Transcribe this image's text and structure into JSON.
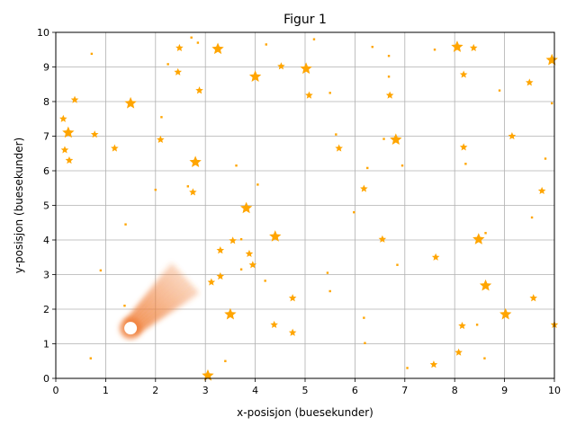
{
  "chart_data": {
    "type": "scatter",
    "title": "Figur 1",
    "xlabel": "x-posisjon (buesekunder)",
    "ylabel": "y-posisjon (buesekunder)",
    "xlim": [
      0,
      10
    ],
    "ylim": [
      0,
      10
    ],
    "grid": true,
    "x_ticks": [
      "0",
      "1",
      "2",
      "3",
      "4",
      "5",
      "6",
      "7",
      "8",
      "9",
      "10"
    ],
    "y_ticks": [
      "0",
      "1",
      "2",
      "3",
      "4",
      "5",
      "6",
      "7",
      "8",
      "9",
      "10"
    ],
    "star_color": "#ffa500",
    "comet_color": "#f0803c",
    "comet": {
      "x": 1.5,
      "y": 1.45,
      "tail_to": [
        2.6,
        2.9
      ]
    },
    "stars": [
      {
        "x": 0.15,
        "y": 7.5,
        "m": "s"
      },
      {
        "x": 0.25,
        "y": 7.1,
        "m": "m"
      },
      {
        "x": 0.18,
        "y": 6.6,
        "m": "s"
      },
      {
        "x": 0.27,
        "y": 6.3,
        "m": "s"
      },
      {
        "x": 0.38,
        "y": 8.05,
        "m": "s"
      },
      {
        "x": 0.72,
        "y": 9.38,
        "m": "t"
      },
      {
        "x": 0.78,
        "y": 7.05,
        "m": "s"
      },
      {
        "x": 1.18,
        "y": 6.65,
        "m": "s"
      },
      {
        "x": 1.5,
        "y": 7.95,
        "m": "m"
      },
      {
        "x": 0.9,
        "y": 3.12,
        "m": "t"
      },
      {
        "x": 1.4,
        "y": 4.45,
        "m": "t"
      },
      {
        "x": 1.38,
        "y": 2.1,
        "m": "t"
      },
      {
        "x": 0.7,
        "y": 0.58,
        "m": "t"
      },
      {
        "x": 2.0,
        "y": 5.45,
        "m": "t"
      },
      {
        "x": 2.1,
        "y": 6.9,
        "m": "s"
      },
      {
        "x": 2.12,
        "y": 7.55,
        "m": "t"
      },
      {
        "x": 2.25,
        "y": 9.08,
        "m": "t"
      },
      {
        "x": 2.45,
        "y": 8.85,
        "m": "s"
      },
      {
        "x": 2.48,
        "y": 9.55,
        "m": "s"
      },
      {
        "x": 2.72,
        "y": 9.85,
        "m": "t"
      },
      {
        "x": 2.85,
        "y": 9.7,
        "m": "t"
      },
      {
        "x": 2.88,
        "y": 8.32,
        "m": "s"
      },
      {
        "x": 3.25,
        "y": 9.52,
        "m": "m"
      },
      {
        "x": 2.8,
        "y": 6.25,
        "m": "m"
      },
      {
        "x": 2.65,
        "y": 5.55,
        "m": "t"
      },
      {
        "x": 2.75,
        "y": 5.38,
        "m": "s"
      },
      {
        "x": 3.62,
        "y": 6.15,
        "m": "t"
      },
      {
        "x": 3.82,
        "y": 4.92,
        "m": "m"
      },
      {
        "x": 3.72,
        "y": 4.02,
        "m": "t"
      },
      {
        "x": 3.55,
        "y": 3.98,
        "m": "s"
      },
      {
        "x": 3.3,
        "y": 3.7,
        "m": "s"
      },
      {
        "x": 3.88,
        "y": 3.6,
        "m": "s"
      },
      {
        "x": 3.95,
        "y": 3.28,
        "m": "s"
      },
      {
        "x": 3.72,
        "y": 3.15,
        "m": "t"
      },
      {
        "x": 3.3,
        "y": 2.95,
        "m": "s"
      },
      {
        "x": 3.12,
        "y": 2.78,
        "m": "s"
      },
      {
        "x": 3.5,
        "y": 1.85,
        "m": "m"
      },
      {
        "x": 3.4,
        "y": 0.5,
        "m": "t"
      },
      {
        "x": 3.05,
        "y": 0.08,
        "m": "m"
      },
      {
        "x": 4.0,
        "y": 8.72,
        "m": "m"
      },
      {
        "x": 4.22,
        "y": 9.65,
        "m": "t"
      },
      {
        "x": 4.52,
        "y": 9.02,
        "m": "s"
      },
      {
        "x": 5.02,
        "y": 8.95,
        "m": "m"
      },
      {
        "x": 5.08,
        "y": 8.18,
        "m": "s"
      },
      {
        "x": 5.18,
        "y": 9.8,
        "m": "t"
      },
      {
        "x": 5.5,
        "y": 8.25,
        "m": "t"
      },
      {
        "x": 4.05,
        "y": 5.6,
        "m": "t"
      },
      {
        "x": 4.4,
        "y": 4.1,
        "m": "m"
      },
      {
        "x": 4.2,
        "y": 2.82,
        "m": "t"
      },
      {
        "x": 4.75,
        "y": 2.32,
        "m": "s"
      },
      {
        "x": 4.38,
        "y": 1.55,
        "m": "s"
      },
      {
        "x": 4.75,
        "y": 1.32,
        "m": "s"
      },
      {
        "x": 5.45,
        "y": 3.05,
        "m": "t"
      },
      {
        "x": 5.5,
        "y": 2.52,
        "m": "t"
      },
      {
        "x": 5.62,
        "y": 7.05,
        "m": "t"
      },
      {
        "x": 5.68,
        "y": 6.65,
        "m": "s"
      },
      {
        "x": 5.98,
        "y": 4.8,
        "m": "t"
      },
      {
        "x": 6.25,
        "y": 6.08,
        "m": "t"
      },
      {
        "x": 6.18,
        "y": 5.48,
        "m": "s"
      },
      {
        "x": 6.35,
        "y": 9.58,
        "m": "t"
      },
      {
        "x": 6.68,
        "y": 9.32,
        "m": "t"
      },
      {
        "x": 6.68,
        "y": 8.72,
        "m": "t"
      },
      {
        "x": 6.7,
        "y": 8.18,
        "m": "s"
      },
      {
        "x": 6.58,
        "y": 6.92,
        "m": "t"
      },
      {
        "x": 6.82,
        "y": 6.9,
        "m": "m"
      },
      {
        "x": 6.95,
        "y": 6.15,
        "m": "t"
      },
      {
        "x": 6.55,
        "y": 4.02,
        "m": "s"
      },
      {
        "x": 6.85,
        "y": 3.28,
        "m": "t"
      },
      {
        "x": 6.18,
        "y": 1.75,
        "m": "t"
      },
      {
        "x": 6.2,
        "y": 1.02,
        "m": "t"
      },
      {
        "x": 7.05,
        "y": 0.3,
        "m": "t"
      },
      {
        "x": 7.6,
        "y": 9.5,
        "m": "t"
      },
      {
        "x": 8.05,
        "y": 9.58,
        "m": "m"
      },
      {
        "x": 8.38,
        "y": 9.55,
        "m": "s"
      },
      {
        "x": 8.18,
        "y": 8.78,
        "m": "s"
      },
      {
        "x": 8.9,
        "y": 8.32,
        "m": "t"
      },
      {
        "x": 8.18,
        "y": 6.68,
        "m": "s"
      },
      {
        "x": 8.22,
        "y": 6.2,
        "m": "t"
      },
      {
        "x": 9.15,
        "y": 7.0,
        "m": "s"
      },
      {
        "x": 9.5,
        "y": 8.55,
        "m": "s"
      },
      {
        "x": 9.95,
        "y": 9.2,
        "m": "m"
      },
      {
        "x": 9.95,
        "y": 7.95,
        "m": "t"
      },
      {
        "x": 9.82,
        "y": 6.35,
        "m": "t"
      },
      {
        "x": 9.75,
        "y": 5.42,
        "m": "s"
      },
      {
        "x": 9.55,
        "y": 4.65,
        "m": "t"
      },
      {
        "x": 8.48,
        "y": 4.02,
        "m": "m"
      },
      {
        "x": 8.62,
        "y": 4.2,
        "m": "t"
      },
      {
        "x": 7.62,
        "y": 3.5,
        "m": "s"
      },
      {
        "x": 8.62,
        "y": 2.68,
        "m": "m"
      },
      {
        "x": 9.58,
        "y": 2.32,
        "m": "s"
      },
      {
        "x": 9.02,
        "y": 1.85,
        "m": "m"
      },
      {
        "x": 8.15,
        "y": 1.52,
        "m": "s"
      },
      {
        "x": 8.45,
        "y": 1.55,
        "m": "t"
      },
      {
        "x": 8.08,
        "y": 0.75,
        "m": "s"
      },
      {
        "x": 8.6,
        "y": 0.58,
        "m": "t"
      },
      {
        "x": 7.58,
        "y": 0.4,
        "m": "s"
      },
      {
        "x": 10.0,
        "y": 1.55,
        "m": "s"
      }
    ]
  }
}
